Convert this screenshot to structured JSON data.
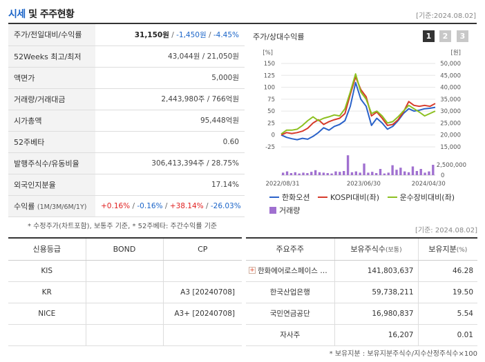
{
  "header": {
    "title_part1": "시세",
    "title_part2": " 및 주주현황",
    "date": "[기준:2024.08.02]"
  },
  "quote": {
    "price_label": "주가/전일대비/수익률",
    "price": "31,150원",
    "change": "-1,450원",
    "change_pct": "-4.45%",
    "sep": " / ",
    "week52_label": "52Weeks 최고/최저",
    "week52_value": "43,044원 / 21,050원",
    "par_label": "액면가",
    "par_value": "5,000원",
    "volume_label": "거래량/거래대금",
    "volume_value": "2,443,980주 / 766억원",
    "mcap_label": "시가총액",
    "mcap_value": "95,448억원",
    "beta_label": "52주베타",
    "beta_value": "0.60",
    "shares_label": "발행주식수/유동비율",
    "shares_value": "306,413,394주 / 28.75%",
    "foreign_label": "외국인지분율",
    "foreign_value": "17.14%",
    "return_label": "수익률",
    "return_period": "(1M/3M/6M/1Y)",
    "return_1m": "+0.16%",
    "return_3m": "-0.16%",
    "return_6m": "+38.14%",
    "return_1y": "-26.03%",
    "return_sep": "/"
  },
  "note1": "* 수정주가(차트포함), 보통주 기준, * 52주베타: 주간수익률 기준",
  "chart": {
    "title": "주가/상대수익률",
    "tabs": [
      "1",
      "2",
      "3"
    ],
    "legend": {
      "series1": "한화오션",
      "series2": "KOSPI대비(좌)",
      "series3": "운수장비대비(좌)",
      "volume": "거래량"
    }
  },
  "chart_data": {
    "type": "line",
    "title": "주가/상대수익률",
    "left_axis_label": "[%]",
    "right_axis_label": "[원]",
    "left_ticks": [
      "150",
      "125",
      "100",
      "75",
      "50",
      "25",
      "0",
      "-25"
    ],
    "left_range": [
      -25,
      150
    ],
    "right_ticks": [
      "50,000",
      "45,000",
      "40,000",
      "35,000",
      "30,000",
      "25,000",
      "20,000",
      "15,000"
    ],
    "right_range": [
      15000,
      50000
    ],
    "volume_tick": "2,500,000",
    "volume_zero": "0",
    "volume_max": 5000000,
    "x_labels": [
      "2022/08/31",
      "2023/06/30",
      "2024/04/30"
    ],
    "x_label_index": [
      0,
      20,
      36
    ],
    "series": [
      {
        "name": "한화오션",
        "color": "#2a62c9",
        "axis": "left",
        "values": [
          0,
          -5,
          -8,
          -10,
          -7,
          -9,
          -3,
          5,
          15,
          10,
          18,
          22,
          30,
          60,
          110,
          75,
          60,
          20,
          35,
          25,
          12,
          18,
          30,
          45,
          55,
          50,
          52,
          55,
          56,
          58
        ]
      },
      {
        "name": "KOSPI대비(좌)",
        "color": "#d63a2a",
        "axis": "left",
        "values": [
          0,
          5,
          3,
          5,
          8,
          14,
          25,
          32,
          22,
          28,
          32,
          35,
          45,
          85,
          122,
          95,
          80,
          40,
          48,
          35,
          20,
          22,
          32,
          48,
          70,
          62,
          60,
          62,
          60,
          66
        ]
      },
      {
        "name": "운수장비대비(좌)",
        "color": "#8cc020",
        "axis": "left",
        "values": [
          2,
          10,
          10,
          12,
          20,
          30,
          38,
          30,
          35,
          38,
          42,
          40,
          55,
          90,
          128,
          90,
          75,
          45,
          50,
          40,
          25,
          28,
          38,
          50,
          62,
          55,
          48,
          40,
          45,
          50
        ]
      }
    ],
    "volume": {
      "name": "거래량",
      "color": "#a070d0",
      "values": [
        600000,
        900000,
        500000,
        700000,
        400000,
        600000,
        500000,
        800000,
        1200000,
        700000,
        600000,
        500000,
        400000,
        900000,
        800000,
        1000000,
        4800000,
        700000,
        900000,
        600000,
        2800000,
        600000,
        800000,
        500000,
        1500000,
        400000,
        600000,
        2400000,
        1300000,
        1800000,
        900000,
        700000,
        2100000,
        1000000,
        1500000,
        600000,
        900000,
        2500000
      ]
    }
  },
  "date2": "[기준: 2024.08.02]",
  "credit": {
    "headers": [
      "신용등급",
      "BOND",
      "CP"
    ],
    "rows": [
      {
        "agency": "KIS",
        "bond": "",
        "cp": ""
      },
      {
        "agency": "KR",
        "bond": "",
        "cp": "A3 [20240708]"
      },
      {
        "agency": "NICE",
        "bond": "",
        "cp": "A3+ [20240708]"
      },
      {
        "agency": "",
        "bond": "",
        "cp": ""
      }
    ]
  },
  "holders": {
    "headers": [
      "주요주주",
      "보유주식수",
      "(보통)",
      "보유지분",
      "(%)"
    ],
    "rows": [
      {
        "name": "한화에어로스페이스 …",
        "shares": "141,803,637",
        "pct": "46.28",
        "expandable": true
      },
      {
        "name": "한국산업은행",
        "shares": "59,738,211",
        "pct": "19.50",
        "expandable": false
      },
      {
        "name": "국민연금공단",
        "shares": "16,980,837",
        "pct": "5.54",
        "expandable": false
      },
      {
        "name": "자사주",
        "shares": "16,207",
        "pct": "0.01",
        "expandable": false
      }
    ],
    "expand_icon": "plus-icon"
  },
  "note2": "* 보유지분 : 보유지분주식수/지수산정주식수×100"
}
